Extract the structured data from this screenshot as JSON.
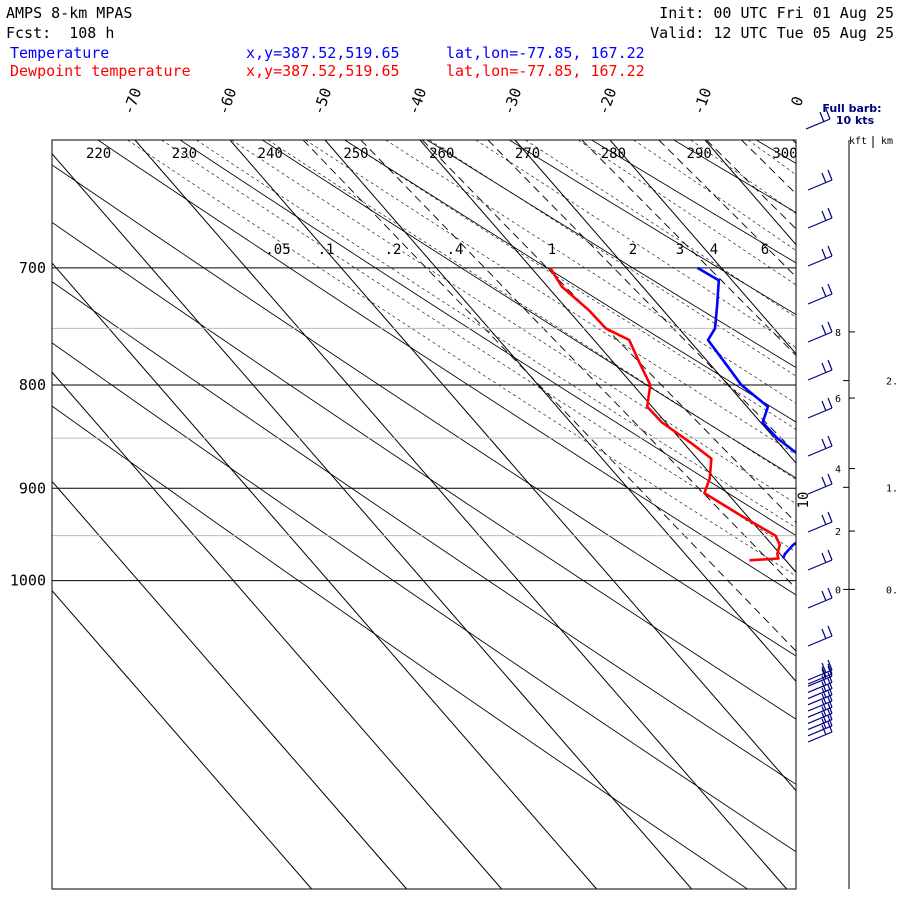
{
  "header": {
    "model": "AMPS 8-km MPAS",
    "forecast": "Fcst:  108 h",
    "init": "Init: 00 UTC Fri 01 Aug 25",
    "valid": "Valid: 12 UTC Tue 05 Aug 25",
    "temperature_label": "Temperature",
    "dewpoint_label": "Dewpoint temperature",
    "xy_temperature": "x,y=387.52,519.65",
    "xy_dewpoint": "x,y=387.52,519.65",
    "latlon_temperature": "lat,lon=-77.85, 167.22",
    "latlon_dewpoint": "lat,lon=-77.85, 167.22"
  },
  "colors": {
    "temperature": "#0000ff",
    "dewpoint": "#ff0000",
    "barbs": "#000080",
    "grid": "#000000",
    "minor_grid": "#bbbbbb"
  },
  "chart_data": {
    "type": "line",
    "title": "AMPS 8-km MPAS",
    "xlabel": "",
    "ylabel": "",
    "pressure_range_hPa": [
      1045,
      700
    ],
    "isobars_labeled": [
      700,
      800,
      900,
      1000
    ],
    "isobars_minor": [
      750,
      850,
      950
    ],
    "isotherm_labels_C": [
      -70,
      -60,
      -50,
      -40,
      -30,
      -20,
      -10,
      0
    ],
    "dry_adiabat_labels_K": [
      220,
      230,
      240,
      250,
      260,
      270,
      280,
      290,
      300
    ],
    "mixing_ratio_labels_gkg": [
      ".05",
      ".1",
      ".2",
      ".4",
      "1",
      "2",
      "3",
      "4",
      "6"
    ],
    "series": [
      {
        "name": "Temperature",
        "color": "#0000ff",
        "points": [
          {
            "p": 975,
            "t": -40.1
          },
          {
            "p": 970,
            "t": -39.5
          },
          {
            "p": 960,
            "t": -37.8
          },
          {
            "p": 950,
            "t": -35.5
          },
          {
            "p": 940,
            "t": -33.5
          },
          {
            "p": 930,
            "t": -32.0
          },
          {
            "p": 920,
            "t": -31.0
          },
          {
            "p": 900,
            "t": -30.3
          },
          {
            "p": 880,
            "t": -29.4
          },
          {
            "p": 865,
            "t": -29.0
          },
          {
            "p": 850,
            "t": -29.7
          },
          {
            "p": 835,
            "t": -29.8
          },
          {
            "p": 820,
            "t": -27.8
          },
          {
            "p": 800,
            "t": -28.6
          },
          {
            "p": 780,
            "t": -28.3
          },
          {
            "p": 760,
            "t": -28.0
          },
          {
            "p": 750,
            "t": -26.2
          },
          {
            "p": 730,
            "t": -23.8
          },
          {
            "p": 710,
            "t": -21.4
          },
          {
            "p": 700,
            "t": -22.5
          }
        ]
      },
      {
        "name": "Dewpoint temperature",
        "color": "#ff0000",
        "points": [
          {
            "p": 977,
            "t": -43.8
          },
          {
            "p": 975,
            "t": -40.6
          },
          {
            "p": 970,
            "t": -40.3
          },
          {
            "p": 960,
            "t": -39.2
          },
          {
            "p": 950,
            "t": -38.8
          },
          {
            "p": 930,
            "t": -40.5
          },
          {
            "p": 905,
            "t": -42.4
          },
          {
            "p": 890,
            "t": -40.5
          },
          {
            "p": 870,
            "t": -38.5
          },
          {
            "p": 855,
            "t": -39.2
          },
          {
            "p": 835,
            "t": -40.4
          },
          {
            "p": 820,
            "t": -40.5
          },
          {
            "p": 800,
            "t": -38.2
          },
          {
            "p": 780,
            "t": -37.3
          },
          {
            "p": 760,
            "t": -36.3
          },
          {
            "p": 750,
            "t": -37.7
          },
          {
            "p": 735,
            "t": -37.8
          },
          {
            "p": 715,
            "t": -38.5
          },
          {
            "p": 700,
            "t": -38.0
          }
        ]
      }
    ],
    "wind_barb_legend": {
      "line1": "Full barb:",
      "line2": "10 kts"
    },
    "wind_barb_count": 25,
    "height_axis": {
      "kft_label": "kft",
      "km_label": "km",
      "kft_ticks": [
        {
          "label": "0",
          "p": 1010
        },
        {
          "label": "2",
          "p": 945
        },
        {
          "label": "4",
          "p": 880
        },
        {
          "label": "6",
          "p": 812
        },
        {
          "label": "8",
          "p": 753
        }
      ],
      "km_ticks": [
        {
          "label": "0.",
          "p": 1010
        },
        {
          "label": "1.",
          "p": 899
        },
        {
          "label": "2.",
          "p": 796
        }
      ]
    },
    "side_label": "10"
  }
}
